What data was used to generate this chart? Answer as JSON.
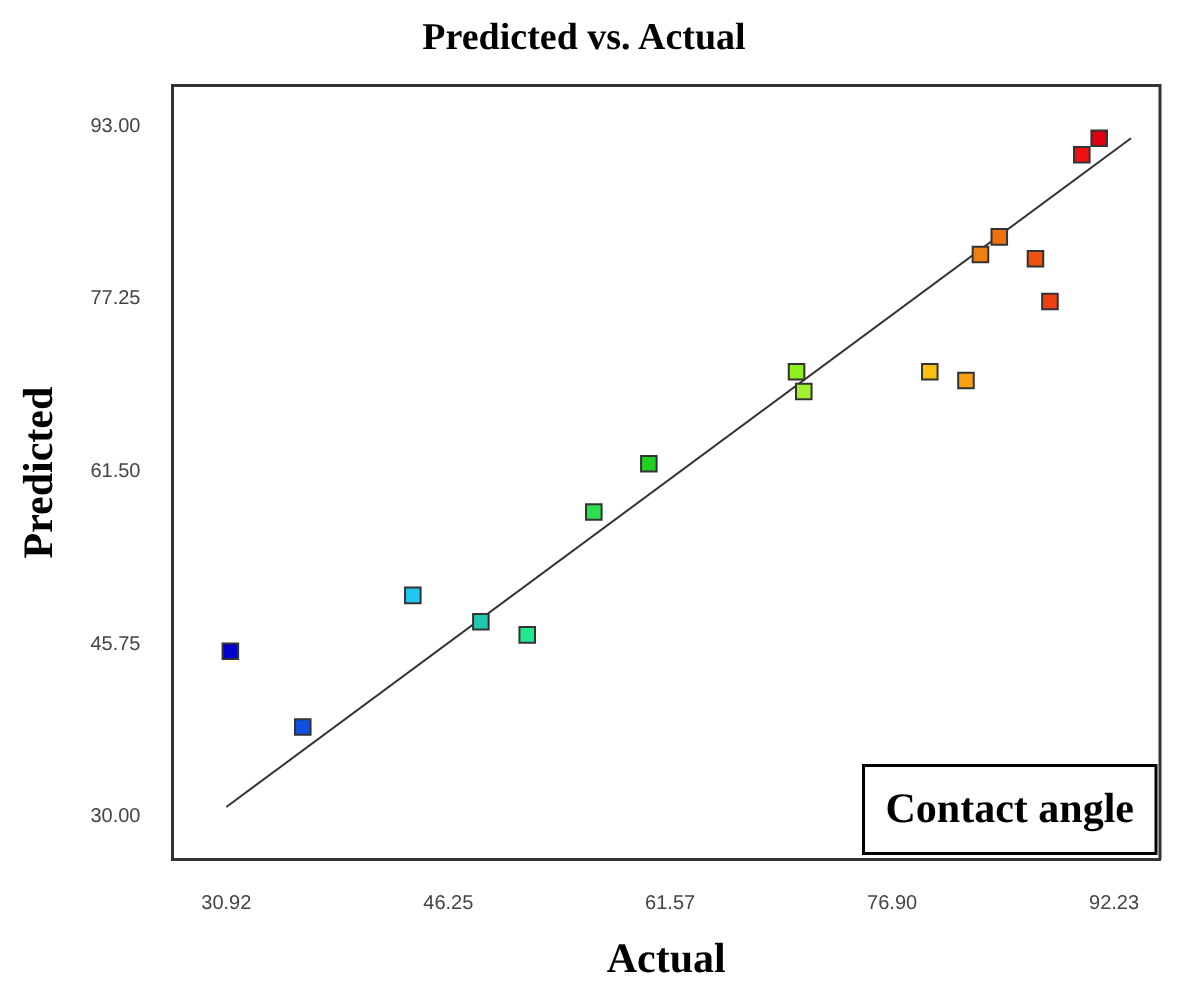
{
  "chart_data": {
    "type": "scatter",
    "title": "Predicted vs. Actual",
    "xlabel": "Actual",
    "ylabel": "Predicted",
    "annotations": [
      "Contact angle"
    ],
    "marker": "square",
    "grid": false,
    "legend": false,
    "xlim": [
      27.2,
      95.4
    ],
    "ylim": [
      26.1,
      96.7
    ],
    "xticks": [
      {
        "value": 30.92,
        "label": "30.92"
      },
      {
        "value": 46.25,
        "label": "46.25"
      },
      {
        "value": 61.57,
        "label": "61.57"
      },
      {
        "value": 76.9,
        "label": "76.90"
      },
      {
        "value": 92.23,
        "label": "92.23"
      }
    ],
    "yticks": [
      {
        "value": 30,
        "label": "30.00"
      },
      {
        "value": 45.75,
        "label": "45.75"
      },
      {
        "value": 61.5,
        "label": "61.50"
      },
      {
        "value": 77.25,
        "label": "77.25"
      },
      {
        "value": 93,
        "label": "93.00"
      }
    ],
    "series": [
      {
        "type": "scatter",
        "x": [
          31.2,
          36.2,
          43.8,
          48.5,
          51.7,
          56.3,
          60.1,
          70.3,
          70.8,
          79.5,
          82.0,
          83.0,
          84.3,
          86.8,
          87.8,
          90.0,
          91.2
        ],
        "values": [
          45.1,
          38.2,
          50.2,
          47.8,
          46.6,
          57.8,
          62.2,
          70.6,
          68.8,
          70.6,
          69.8,
          81.3,
          82.9,
          80.9,
          77.0,
          90.4,
          91.9
        ],
        "colors": [
          "#0000cc",
          "#1050e0",
          "#20c8f0",
          "#20c8b0",
          "#20e890",
          "#30e050",
          "#20d020",
          "#90f020",
          "#a0f030",
          "#f8c010",
          "#f8a010",
          "#f08010",
          "#f07010",
          "#f05010",
          "#f04010",
          "#f01010",
          "#e00010"
        ]
      },
      {
        "type": "line",
        "x": [
          30.92,
          93.4
        ],
        "values": [
          30.9,
          91.9
        ],
        "color": "#333333",
        "marker": "none"
      }
    ]
  }
}
